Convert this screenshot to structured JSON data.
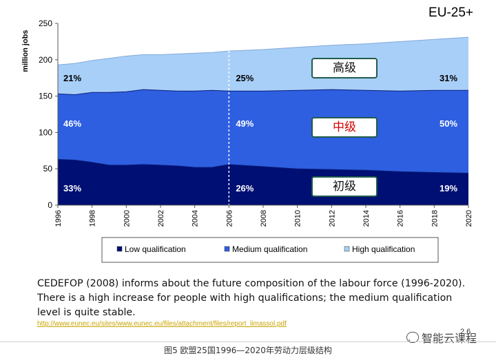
{
  "chart_data": {
    "type": "area",
    "title": "EU-25+",
    "ylabel": "million jobs",
    "xlabel": "",
    "ylim": [
      0,
      250
    ],
    "xlim": [
      1996,
      2020
    ],
    "yticks": [
      0,
      50,
      100,
      150,
      200,
      250
    ],
    "xticks": [
      1996,
      1998,
      2000,
      2002,
      2004,
      2006,
      2008,
      2010,
      2012,
      2014,
      2016,
      2018,
      2020
    ],
    "stacked": true,
    "x": [
      1996,
      1997,
      1998,
      1999,
      2000,
      2001,
      2002,
      2003,
      2004,
      2005,
      2006,
      2008,
      2010,
      2012,
      2014,
      2016,
      2018,
      2020
    ],
    "series": [
      {
        "name": "Low qualification",
        "color": "#000f73",
        "cumulative": [
          63,
          62,
          59,
          55,
          55,
          56,
          55,
          54,
          52,
          52,
          56,
          53,
          50,
          49,
          48,
          46,
          45,
          44
        ]
      },
      {
        "name": "Medium qualification",
        "color": "#2e5fe0",
        "cumulative": [
          153,
          152,
          155,
          155,
          156,
          159,
          158,
          157,
          157,
          158,
          157,
          157,
          158,
          159,
          158,
          157,
          158,
          158
        ]
      },
      {
        "name": "High qualification",
        "color": "#a8cff8",
        "cumulative": [
          193,
          195,
          199,
          202,
          205,
          207,
          207,
          208,
          209,
          210,
          212,
          214,
          217,
          220,
          222,
          225,
          228,
          231
        ]
      }
    ],
    "share_labels": {
      "high": [
        "21%",
        "25%",
        "31%"
      ],
      "medium": [
        "46%",
        "49%",
        "50%"
      ],
      "low": [
        "33%",
        "26%",
        "19%"
      ]
    },
    "reference_line_year": 2006,
    "legend": [
      "Low qualification",
      "Medium qualification",
      "High qualification"
    ],
    "legend_position": "bottom",
    "grid": false
  },
  "regions": {
    "high": "高级",
    "medium": "中级",
    "low": "初级"
  },
  "description_lines": [
    "CEDEFOP (2008) informs about the future composition of the labour force (1996-2020).",
    "There is a high increase for people with high qualifications; the medium qualification",
    "level is quite stable."
  ],
  "source_url": "http://www.eunec.eu/sites/www.eunec.eu/files/attachment/files/report_limassol.pdf",
  "page_ref": "2.6",
  "watermark": "智能云课程",
  "caption": "图5   欧盟25国1996—2020年劳动力层级结构"
}
